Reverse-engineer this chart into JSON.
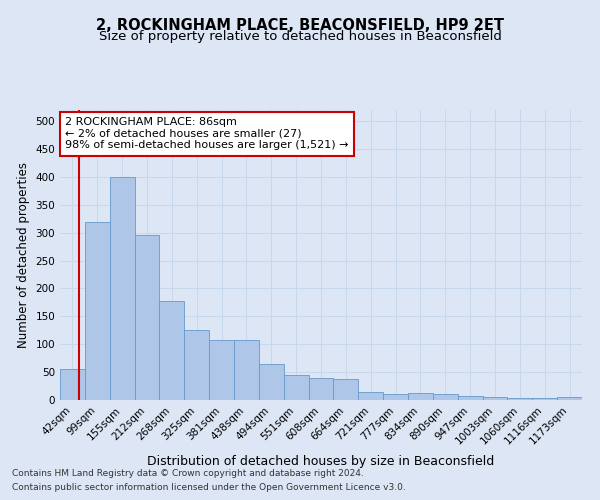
{
  "title": "2, ROCKINGHAM PLACE, BEACONSFIELD, HP9 2ET",
  "subtitle": "Size of property relative to detached houses in Beaconsfield",
  "xlabel": "Distribution of detached houses by size in Beaconsfield",
  "ylabel": "Number of detached properties",
  "footnote1": "Contains HM Land Registry data © Crown copyright and database right 2024.",
  "footnote2": "Contains public sector information licensed under the Open Government Licence v3.0.",
  "categories": [
    "42sqm",
    "99sqm",
    "155sqm",
    "212sqm",
    "268sqm",
    "325sqm",
    "381sqm",
    "438sqm",
    "494sqm",
    "551sqm",
    "608sqm",
    "664sqm",
    "721sqm",
    "777sqm",
    "834sqm",
    "890sqm",
    "947sqm",
    "1003sqm",
    "1060sqm",
    "1116sqm",
    "1173sqm"
  ],
  "values": [
    55,
    320,
    400,
    295,
    178,
    125,
    107,
    107,
    65,
    45,
    40,
    37,
    15,
    10,
    13,
    10,
    7,
    5,
    3,
    3,
    5
  ],
  "bar_color": "#aec6e8",
  "bar_edge_color": "#6699cc",
  "annotation_text": "2 ROCKINGHAM PLACE: 86sqm\n← 2% of detached houses are smaller (27)\n98% of semi-detached houses are larger (1,521) →",
  "annotation_box_color": "white",
  "annotation_box_edge_color": "#cc0000",
  "vline_color": "#cc0000",
  "ylim": [
    0,
    520
  ],
  "yticks": [
    0,
    50,
    100,
    150,
    200,
    250,
    300,
    350,
    400,
    450,
    500
  ],
  "grid_color": "#c8d8ec",
  "background_color": "#dce6f5",
  "title_fontsize": 10.5,
  "subtitle_fontsize": 9.5,
  "xlabel_fontsize": 9,
  "ylabel_fontsize": 8.5,
  "tick_fontsize": 7.5,
  "annotation_fontsize": 8,
  "footnote_fontsize": 6.5
}
